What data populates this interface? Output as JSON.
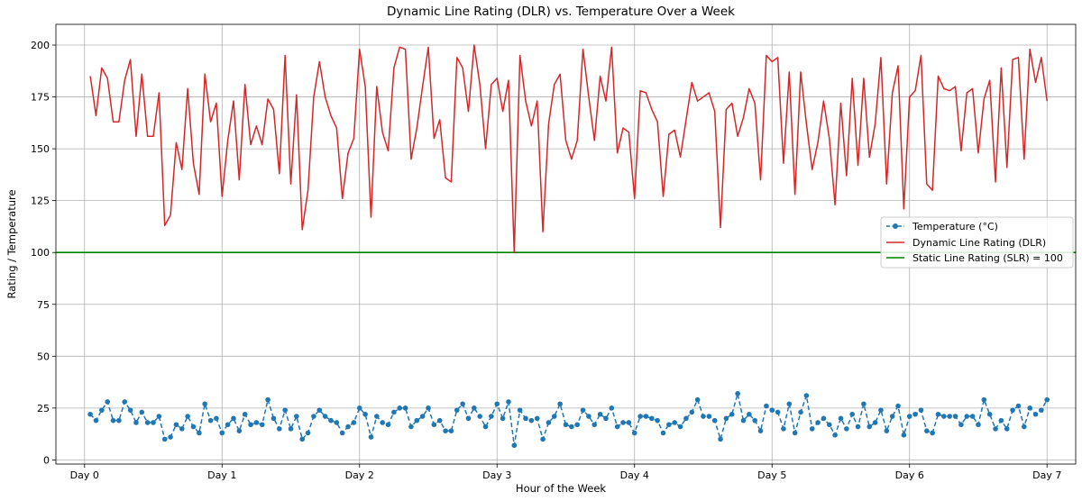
{
  "chart_data": {
    "type": "line",
    "title": "Dynamic Line Rating (DLR) vs. Temperature Over a Week",
    "xlabel": "Hour of the Week",
    "ylabel": "Rating / Temperature",
    "xlim": [
      -5,
      173
    ],
    "ylim": [
      -2,
      210
    ],
    "grid": true,
    "legend_position": "center-right",
    "x_ticks": [
      {
        "value": 0,
        "label": "Day 0"
      },
      {
        "value": 24,
        "label": "Day 1"
      },
      {
        "value": 48,
        "label": "Day 2"
      },
      {
        "value": 72,
        "label": "Day 3"
      },
      {
        "value": 96,
        "label": "Day 4"
      },
      {
        "value": 120,
        "label": "Day 5"
      },
      {
        "value": 144,
        "label": "Day 6"
      },
      {
        "value": 168,
        "label": "Day 7"
      }
    ],
    "y_ticks": [
      {
        "value": 0,
        "label": "0"
      },
      {
        "value": 25,
        "label": "25"
      },
      {
        "value": 50,
        "label": "50"
      },
      {
        "value": 75,
        "label": "75"
      },
      {
        "value": 100,
        "label": "100"
      },
      {
        "value": 125,
        "label": "125"
      },
      {
        "value": 150,
        "label": "150"
      },
      {
        "value": 175,
        "label": "175"
      },
      {
        "value": 200,
        "label": "200"
      }
    ],
    "x_start": 1,
    "x_step": 1,
    "series": [
      {
        "name": "Temperature (°C)",
        "style": "dashed-marker",
        "color": "#1f77b4",
        "values": [
          22,
          19,
          24,
          28,
          19,
          19,
          28,
          24,
          18,
          23,
          18,
          18,
          21,
          10,
          11,
          17,
          15,
          21,
          16,
          13,
          27,
          19,
          20,
          13,
          17,
          20,
          14,
          22,
          17,
          18,
          17,
          29,
          20,
          15,
          24,
          15,
          21,
          10,
          13,
          21,
          24,
          21,
          19,
          18,
          13,
          16,
          18,
          25,
          22,
          11,
          21,
          18,
          17,
          23,
          25,
          25,
          16,
          19,
          21,
          25,
          17,
          19,
          14,
          14,
          24,
          27,
          20,
          25,
          21,
          16,
          21,
          27,
          20,
          28,
          7,
          24,
          20,
          19,
          20,
          10,
          18,
          21,
          27,
          17,
          16,
          17,
          24,
          21,
          17,
          22,
          20,
          25,
          16,
          18,
          18,
          13,
          21,
          21,
          20,
          19,
          13,
          17,
          18,
          16,
          20,
          23,
          29,
          21,
          21,
          19,
          10,
          20,
          22,
          32,
          19,
          22,
          19,
          14,
          26,
          24,
          23,
          15,
          27,
          13,
          23,
          31,
          15,
          18,
          20,
          17,
          12,
          20,
          15,
          22,
          16,
          27,
          16,
          18,
          24,
          14,
          21,
          26,
          12,
          21,
          22,
          24,
          14,
          13,
          22,
          21,
          21,
          21,
          17,
          21,
          21,
          17,
          29,
          22,
          15,
          19,
          15,
          24,
          26,
          16,
          25,
          22,
          24,
          29
        ]
      },
      {
        "name": "Dynamic Line Rating (DLR)",
        "style": "solid",
        "color": "#d62728",
        "values": [
          185,
          166,
          189,
          184,
          163,
          163,
          183,
          193,
          156,
          186,
          156,
          156,
          177,
          113,
          118,
          153,
          140,
          179,
          143,
          128,
          186,
          163,
          172,
          127,
          154,
          173,
          135,
          181,
          152,
          161,
          152,
          174,
          169,
          138,
          195,
          133,
          176,
          111,
          130,
          175,
          192,
          175,
          166,
          160,
          126,
          148,
          155,
          198,
          180,
          117,
          180,
          158,
          149,
          189,
          199,
          198,
          145,
          160,
          180,
          199,
          155,
          164,
          136,
          134,
          194,
          189,
          168,
          200,
          181,
          150,
          181,
          184,
          168,
          183,
          100,
          195,
          173,
          161,
          173,
          110,
          162,
          181,
          186,
          154,
          145,
          154,
          198,
          175,
          154,
          185,
          173,
          199,
          148,
          160,
          158,
          126,
          178,
          177,
          169,
          163,
          127,
          157,
          159,
          146,
          164,
          182,
          173,
          175,
          177,
          168,
          112,
          169,
          172,
          156,
          165,
          179,
          172,
          135,
          195,
          192,
          194,
          143,
          187,
          128,
          187,
          162,
          140,
          153,
          173,
          155,
          123,
          172,
          137,
          184,
          142,
          184,
          146,
          162,
          194,
          133,
          177,
          190,
          121,
          175,
          178,
          195,
          133,
          130,
          185,
          179,
          178,
          180,
          149,
          177,
          179,
          148,
          174,
          183,
          134,
          189,
          141,
          193,
          194,
          145,
          198,
          182,
          194,
          173
        ]
      },
      {
        "name": "Static Line Rating (SLR) = 100",
        "style": "hline",
        "color": "#008000",
        "value": 100
      }
    ]
  }
}
